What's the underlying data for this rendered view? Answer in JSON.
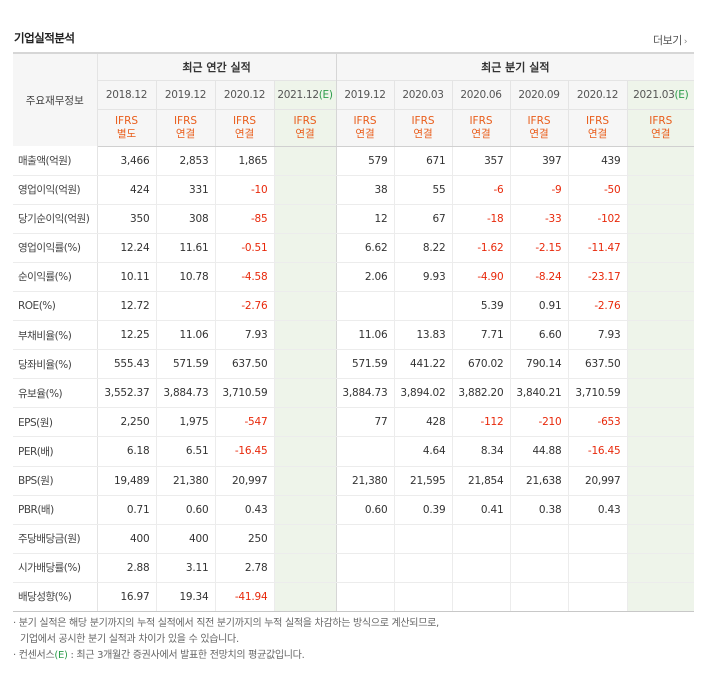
{
  "header": {
    "title": "기업실적분석",
    "more_label": "더보기",
    "more_icon": "chevron-right-icon"
  },
  "table": {
    "row_header_label": "주요재무정보",
    "annual_group_label": "최근 연간 실적",
    "quarter_group_label": "최근 분기 실적",
    "columns": [
      {
        "period": "2018.12",
        "est": "",
        "std1": "IFRS",
        "std2": "별도"
      },
      {
        "period": "2019.12",
        "est": "",
        "std1": "IFRS",
        "std2": "연결"
      },
      {
        "period": "2020.12",
        "est": "",
        "std1": "IFRS",
        "std2": "연결"
      },
      {
        "period": "2021.12",
        "est": "(E)",
        "std1": "IFRS",
        "std2": "연결"
      },
      {
        "period": "2019.12",
        "est": "",
        "std1": "IFRS",
        "std2": "연결"
      },
      {
        "period": "2020.03",
        "est": "",
        "std1": "IFRS",
        "std2": "연결"
      },
      {
        "period": "2020.06",
        "est": "",
        "std1": "IFRS",
        "std2": "연결"
      },
      {
        "period": "2020.09",
        "est": "",
        "std1": "IFRS",
        "std2": "연결"
      },
      {
        "period": "2020.12",
        "est": "",
        "std1": "IFRS",
        "std2": "연결"
      },
      {
        "period": "2021.03",
        "est": "(E)",
        "std1": "IFRS",
        "std2": "연결"
      }
    ],
    "rows": [
      {
        "label": "매출액(억원)",
        "values": [
          "3,466",
          "2,853",
          "1,865",
          "",
          "579",
          "671",
          "357",
          "397",
          "439",
          ""
        ]
      },
      {
        "label": "영업이익(억원)",
        "values": [
          "424",
          "331",
          "-10",
          "",
          "38",
          "55",
          "-6",
          "-9",
          "-50",
          ""
        ]
      },
      {
        "label": "당기순이익(억원)",
        "values": [
          "350",
          "308",
          "-85",
          "",
          "12",
          "67",
          "-18",
          "-33",
          "-102",
          ""
        ]
      },
      {
        "label": "영업이익률(%)",
        "values": [
          "12.24",
          "11.61",
          "-0.51",
          "",
          "6.62",
          "8.22",
          "-1.62",
          "-2.15",
          "-11.47",
          ""
        ]
      },
      {
        "label": "순이익률(%)",
        "values": [
          "10.11",
          "10.78",
          "-4.58",
          "",
          "2.06",
          "9.93",
          "-4.90",
          "-8.24",
          "-23.17",
          ""
        ]
      },
      {
        "label": "ROE(%)",
        "values": [
          "12.72",
          "",
          "-2.76",
          "",
          "",
          "",
          "5.39",
          "0.91",
          "-2.76",
          ""
        ]
      },
      {
        "label": "부채비율(%)",
        "values": [
          "12.25",
          "11.06",
          "7.93",
          "",
          "11.06",
          "13.83",
          "7.71",
          "6.60",
          "7.93",
          ""
        ]
      },
      {
        "label": "당좌비율(%)",
        "values": [
          "555.43",
          "571.59",
          "637.50",
          "",
          "571.59",
          "441.22",
          "670.02",
          "790.14",
          "637.50",
          ""
        ]
      },
      {
        "label": "유보율(%)",
        "values": [
          "3,552.37",
          "3,884.73",
          "3,710.59",
          "",
          "3,884.73",
          "3,894.02",
          "3,882.20",
          "3,840.21",
          "3,710.59",
          ""
        ]
      },
      {
        "label": "EPS(원)",
        "values": [
          "2,250",
          "1,975",
          "-547",
          "",
          "77",
          "428",
          "-112",
          "-210",
          "-653",
          ""
        ]
      },
      {
        "label": "PER(배)",
        "values": [
          "6.18",
          "6.51",
          "-16.45",
          "",
          "",
          "4.64",
          "8.34",
          "44.88",
          "-16.45",
          ""
        ]
      },
      {
        "label": "BPS(원)",
        "values": [
          "19,489",
          "21,380",
          "20,997",
          "",
          "21,380",
          "21,595",
          "21,854",
          "21,638",
          "20,997",
          ""
        ]
      },
      {
        "label": "PBR(배)",
        "values": [
          "0.71",
          "0.60",
          "0.43",
          "",
          "0.60",
          "0.39",
          "0.41",
          "0.38",
          "0.43",
          ""
        ]
      },
      {
        "label": "주당배당금(원)",
        "values": [
          "400",
          "400",
          "250",
          "",
          "",
          "",
          "",
          "",
          "",
          ""
        ]
      },
      {
        "label": "시가배당률(%)",
        "values": [
          "2.88",
          "3.11",
          "2.78",
          "",
          "",
          "",
          "",
          "",
          "",
          ""
        ]
      },
      {
        "label": "배당성향(%)",
        "values": [
          "16.97",
          "19.34",
          "-41.94",
          "",
          "",
          "",
          "",
          "",
          "",
          ""
        ]
      }
    ]
  },
  "notes": {
    "line1": "· 분기 실적은 해당 분기까지의 누적 실적에서 직전 분기까지의 누적 실적을 차감하는 방식으로 계산되므로,",
    "line2": "기업에서 공시한 분기 실적과 차이가 있을 수 있습니다.",
    "line3_prefix": "· 컨센서스",
    "line3_mark": "(E)",
    "line3_suffix": " : 최근 3개월간 증권사에서 발표한 전망치의 평균값입니다."
  },
  "colors": {
    "negative": "#e8290b",
    "standard": "#e95d1b",
    "estimate_mark": "#2e9d4c",
    "estimate_bg": "#eef4ea"
  }
}
